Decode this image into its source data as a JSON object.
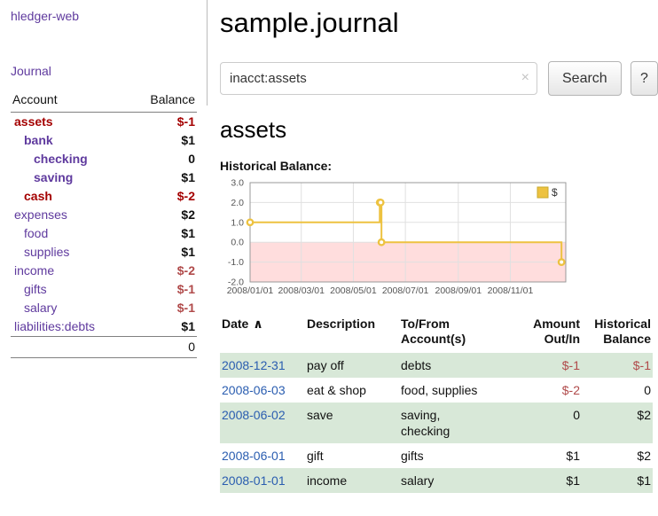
{
  "colors": {
    "accent_purple": "#5f3a9e",
    "negative_strong_red": "#a40000",
    "negative_soft_red": "#b04a4a",
    "date_link_blue": "#2a5db0",
    "row_highlight_green": "#d8e8d8",
    "chart_line_yellow": "#edc240",
    "chart_negative_region_pink": "#ffdddd"
  },
  "sidebar": {
    "brand": "hledger-web",
    "journal_link": "Journal",
    "accounts": {
      "header_account": "Account",
      "header_balance": "Balance",
      "rows": [
        {
          "account": "assets",
          "balance": "$-1",
          "depth": 0,
          "selected": true,
          "account_negative": true,
          "balance_negative": true
        },
        {
          "account": "bank",
          "balance": "$1",
          "depth": 1,
          "selected": true,
          "account_negative": false,
          "balance_negative": false
        },
        {
          "account": "checking",
          "balance": "0",
          "depth": 2,
          "selected": true,
          "account_negative": false,
          "balance_negative": false
        },
        {
          "account": "saving",
          "balance": "$1",
          "depth": 2,
          "selected": true,
          "account_negative": false,
          "balance_negative": false
        },
        {
          "account": "cash",
          "balance": "$-2",
          "depth": 1,
          "selected": true,
          "account_negative": true,
          "balance_negative": true
        },
        {
          "account": "expenses",
          "balance": "$2",
          "depth": 0,
          "selected": false,
          "account_negative": false,
          "balance_negative": false
        },
        {
          "account": "food",
          "balance": "$1",
          "depth": 1,
          "selected": false,
          "account_negative": false,
          "balance_negative": false
        },
        {
          "account": "supplies",
          "balance": "$1",
          "depth": 1,
          "selected": false,
          "account_negative": false,
          "balance_negative": false
        },
        {
          "account": "income",
          "balance": "$-2",
          "depth": 0,
          "selected": false,
          "account_negative": false,
          "balance_negative": true
        },
        {
          "account": "gifts",
          "balance": "$-1",
          "depth": 1,
          "selected": false,
          "account_negative": false,
          "balance_negative": true
        },
        {
          "account": "salary",
          "balance": "$-1",
          "depth": 1,
          "selected": false,
          "account_negative": false,
          "balance_negative": true
        },
        {
          "account": "liabilities:debts",
          "balance": "$1",
          "depth": 0,
          "selected": false,
          "account_negative": false,
          "balance_negative": false
        }
      ],
      "total": "0"
    }
  },
  "main": {
    "title": "sample.journal",
    "search": {
      "value": "inacct:assets",
      "clear_icon": "×",
      "button_label": "Search",
      "help_label": "?"
    },
    "account_heading": "assets",
    "chart_title": "Historical Balance:"
  },
  "chart_data": {
    "type": "line",
    "title": "Historical Balance:",
    "line_color": "#edc240",
    "negative_region_color": "#ffdddd",
    "legend_position": "top-right",
    "grid": true,
    "ylim": [
      -2.0,
      3.0
    ],
    "yticks": [
      3.0,
      2.0,
      1.0,
      0.0,
      -1.0,
      -2.0
    ],
    "xticks": [
      "2008/01/01",
      "2008/03/01",
      "2008/05/01",
      "2008/07/01",
      "2008/09/01",
      "2008/11/01"
    ],
    "x_range": [
      "2008-01-01",
      "2009-01-05"
    ],
    "series": [
      {
        "name": "$",
        "style": "step-after",
        "points": [
          [
            "2008-01-01",
            1
          ],
          [
            "2008-06-01",
            2
          ],
          [
            "2008-06-02",
            2
          ],
          [
            "2008-06-03",
            0
          ],
          [
            "2008-12-31",
            -1
          ]
        ]
      }
    ]
  },
  "register": {
    "headers": {
      "date": "Date",
      "sort_icon": "∧",
      "description": "Description",
      "accounts_line1": "To/From",
      "accounts_line2": "Account(s)",
      "amount_line1": "Amount",
      "amount_line2": "Out/In",
      "balance_line1": "Historical",
      "balance_line2": "Balance"
    },
    "rows": [
      {
        "date": "2008-12-31",
        "description": "pay off",
        "accounts": "debts",
        "amount": "$-1",
        "balance": "$-1",
        "amount_negative": true,
        "balance_negative": true,
        "shaded": true
      },
      {
        "date": "2008-06-03",
        "description": "eat & shop",
        "accounts": "food, supplies",
        "amount": "$-2",
        "balance": "0",
        "amount_negative": true,
        "balance_negative": false,
        "shaded": false
      },
      {
        "date": "2008-06-02",
        "description": "save",
        "accounts": "saving,\nchecking",
        "amount": "0",
        "balance": "$2",
        "amount_negative": false,
        "balance_negative": false,
        "shaded": true
      },
      {
        "date": "2008-06-01",
        "description": "gift",
        "accounts": "gifts",
        "amount": "$1",
        "balance": "$2",
        "amount_negative": false,
        "balance_negative": false,
        "shaded": false
      },
      {
        "date": "2008-01-01",
        "description": "income",
        "accounts": "salary",
        "amount": "$1",
        "balance": "$1",
        "amount_negative": false,
        "balance_negative": false,
        "shaded": true
      }
    ]
  }
}
